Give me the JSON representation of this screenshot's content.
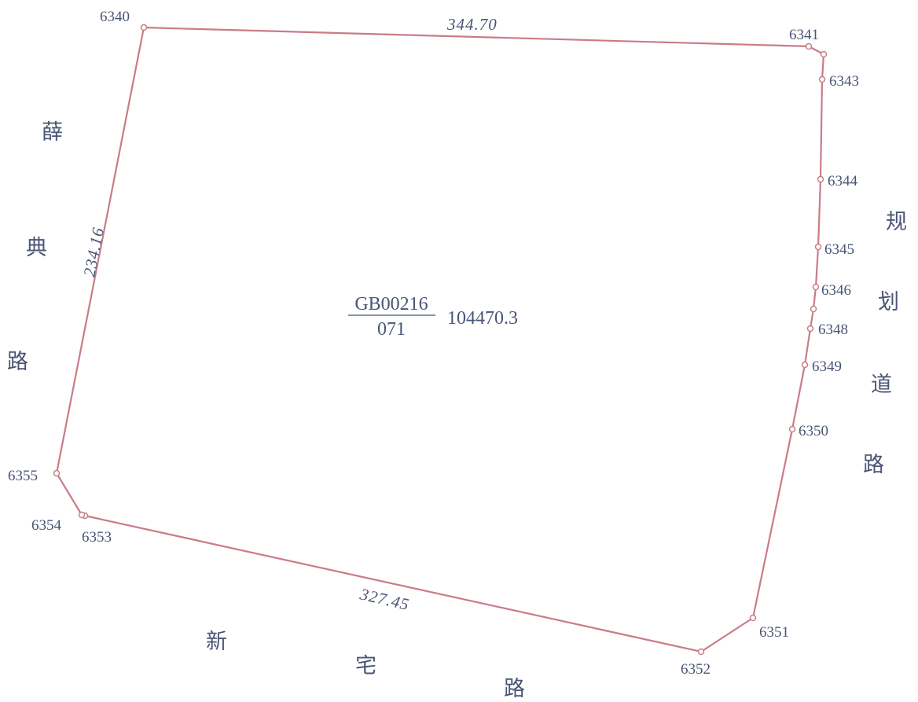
{
  "boundary_color": "#c97c87",
  "label_color": "#4a5576",
  "parcel": {
    "code": "GB00216",
    "sub_code": "071",
    "area": "104470.3"
  },
  "edge_lengths": {
    "top": "344.70",
    "left": "234.16",
    "bottom": "327.45"
  },
  "points": {
    "p6340": "6340",
    "p6341": "6341",
    "p6343": "6343",
    "p6344": "6344",
    "p6345": "6345",
    "p6346": "6346",
    "p6348": "6348",
    "p6349": "6349",
    "p6350": "6350",
    "p6351": "6351",
    "p6352": "6352",
    "p6353": "6353",
    "p6354": "6354",
    "p6355": "6355"
  },
  "roads": {
    "west": [
      "薛",
      "典",
      "路"
    ],
    "east": [
      "规",
      "划",
      "道",
      "路"
    ],
    "south": [
      "新",
      "宅",
      "路"
    ]
  }
}
